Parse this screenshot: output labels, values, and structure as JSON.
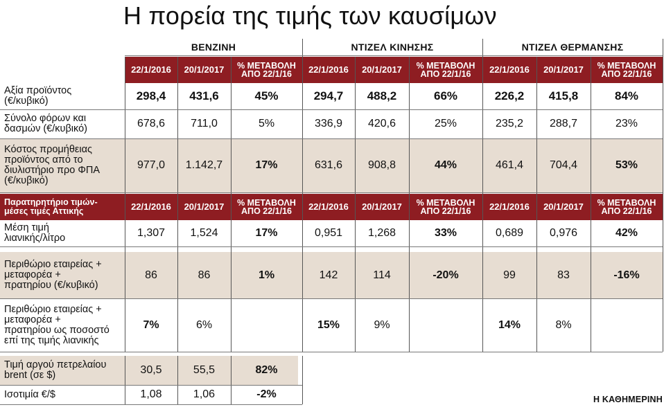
{
  "title": "Η πορεία της τιμής των καυσίμων",
  "groups": [
    "ΒΕΝΖΙΝΗ",
    "ΝΤΙΖΕΛ ΚΙΝΗΣΗΣ",
    "ΝΤΙΖΕΛ ΘΕΡΜΑΝΣΗΣ"
  ],
  "col_headers": [
    "22/1/2016",
    "20/1/2017",
    "% ΜΕΤΑΒΟΛΗ ΑΠΟ 22/1/16"
  ],
  "section2_label": "Παρατηρητήριο τιμών- μέσες τιμές Αττικής",
  "rows": [
    {
      "label": [
        "Αξία προϊόντος",
        "(€/κυβικό)"
      ],
      "values": [
        "298,4",
        "431,6",
        "45%",
        "294,7",
        "488,2",
        "66%",
        "226,2",
        "415,8",
        "84%"
      ]
    },
    {
      "label": [
        "Σύνολο φόρων και",
        "δασμών (€/κυβικό)"
      ],
      "values": [
        "678,6",
        "711,0",
        "5%",
        "336,9",
        "420,6",
        "25%",
        "235,2",
        "288,7",
        "23%"
      ]
    },
    {
      "label": [
        "Κόστος προμήθειας",
        "προϊόντος από το",
        "διυλιστήριο προ ΦΠΑ",
        "(€/κυβικό)"
      ],
      "values": [
        "977,0",
        "1.142,7",
        "17%",
        "631,6",
        "908,8",
        "44%",
        "461,4",
        "704,4",
        "53%"
      ]
    },
    {
      "label": [
        "Μέση τιμή",
        "λιανικής/λίτρο"
      ],
      "values": [
        "1,307",
        "1,524",
        "17%",
        "0,951",
        "1,268",
        "33%",
        "0,689",
        "0,976",
        "42%"
      ]
    },
    {
      "label": [
        "Περιθώριο εταιρείας +",
        "μεταφορέα +",
        "πρατηρίου (€/κυβικό)"
      ],
      "values": [
        "86",
        "86",
        "1%",
        "142",
        "114",
        "-20%",
        "99",
        "83",
        "-16%"
      ]
    },
    {
      "label": [
        "Περιθώριο εταιρείας +",
        "μεταφορέα +",
        "πρατηρίου ως ποσοστό",
        "επί της τιμής λιανικής"
      ],
      "values": [
        "7%",
        "6%",
        "",
        "15%",
        "9%",
        "",
        "14%",
        "8%",
        ""
      ]
    },
    {
      "label": [
        "Τιμή αργού πετρελαίου",
        "brent (σε $)"
      ],
      "values": [
        "30,5",
        "55,5",
        "82%"
      ]
    },
    {
      "label": [
        "Ισοτιμία €/$"
      ],
      "values": [
        "1,08",
        "1,06",
        "-2%"
      ]
    }
  ],
  "source": "Η ΚΑΘΗΜΕΡΙΝΗ",
  "colors": {
    "header_red": "#8e1d22",
    "beige": "#e7ddd2"
  }
}
